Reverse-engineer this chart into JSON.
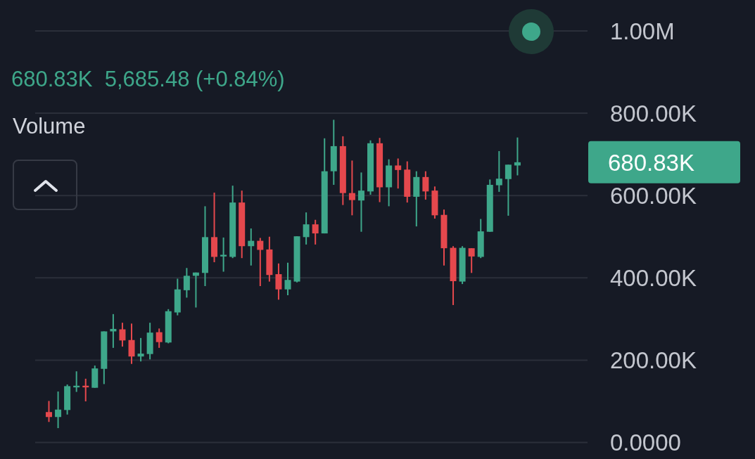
{
  "chart_data": {
    "type": "candlestick",
    "subtitle": "680.83K  5,685.48 (+0.84%)",
    "annotations": [
      "Volume",
      "680.83K"
    ],
    "categories": [
      null,
      null,
      null,
      null,
      null,
      null,
      null,
      null,
      null,
      null,
      null,
      null,
      null,
      null,
      null,
      null,
      null,
      null,
      null,
      null,
      null,
      null,
      null,
      null,
      null,
      null,
      null,
      null,
      null,
      null,
      null,
      null,
      null,
      null,
      null,
      null,
      null,
      null,
      null,
      null,
      null,
      null,
      null,
      null,
      null,
      null,
      null,
      null,
      null,
      null,
      null,
      null
    ],
    "ohlc": [
      [
        74000,
        101000,
        50000,
        62000
      ],
      [
        62000,
        124000,
        35000,
        80000
      ],
      [
        79000,
        141000,
        68000,
        137000
      ],
      [
        134000,
        173000,
        123000,
        138000
      ],
      [
        138000,
        155000,
        100000,
        134000
      ],
      [
        133000,
        187000,
        133000,
        180000
      ],
      [
        179000,
        270000,
        142000,
        270000
      ],
      [
        270000,
        312000,
        230000,
        276000
      ],
      [
        275000,
        291000,
        233000,
        248000
      ],
      [
        249000,
        289000,
        191000,
        209000
      ],
      [
        209000,
        254000,
        197000,
        216000
      ],
      [
        215000,
        291000,
        202000,
        267000
      ],
      [
        268000,
        277000,
        230000,
        244000
      ],
      [
        243000,
        324000,
        241000,
        319000
      ],
      [
        316000,
        398000,
        309000,
        372000
      ],
      [
        370000,
        424000,
        352000,
        405000
      ],
      [
        405000,
        413000,
        328000,
        413000
      ],
      [
        412000,
        574000,
        380000,
        499000
      ],
      [
        499000,
        607000,
        438000,
        451000
      ],
      [
        452000,
        498000,
        415000,
        456000
      ],
      [
        451000,
        624000,
        448000,
        583000
      ],
      [
        583000,
        612000,
        448000,
        477000
      ],
      [
        477000,
        520000,
        430000,
        490000
      ],
      [
        490000,
        497000,
        380000,
        468000
      ],
      [
        469000,
        500000,
        391000,
        407000
      ],
      [
        409000,
        435000,
        347000,
        372000
      ],
      [
        372000,
        437000,
        358000,
        395000
      ],
      [
        391000,
        501000,
        389000,
        501000
      ],
      [
        499000,
        559000,
        481000,
        530000
      ],
      [
        530000,
        541000,
        481000,
        508000
      ],
      [
        508000,
        739000,
        508000,
        659000
      ],
      [
        659000,
        784000,
        626000,
        720000
      ],
      [
        720000,
        744000,
        577000,
        606000
      ],
      [
        606000,
        685000,
        552000,
        589000
      ],
      [
        588000,
        656000,
        512000,
        612000
      ],
      [
        610000,
        734000,
        602000,
        727000
      ],
      [
        727000,
        740000,
        584000,
        620000
      ],
      [
        620000,
        688000,
        574000,
        673000
      ],
      [
        673000,
        690000,
        617000,
        662000
      ],
      [
        663000,
        683000,
        583000,
        597000
      ],
      [
        597000,
        659000,
        525000,
        645000
      ],
      [
        645000,
        659000,
        590000,
        610000
      ],
      [
        612000,
        622000,
        544000,
        552000
      ],
      [
        553000,
        566000,
        430000,
        472000
      ],
      [
        473000,
        477000,
        334000,
        392000
      ],
      [
        391000,
        477000,
        385000,
        473000
      ],
      [
        472000,
        472000,
        412000,
        452000
      ],
      [
        451000,
        543000,
        448000,
        513000
      ],
      [
        512000,
        639000,
        512000,
        626000
      ],
      [
        625000,
        708000,
        609000,
        641000
      ],
      [
        640000,
        675000,
        551000,
        675000
      ],
      [
        673000,
        741000,
        649000,
        680830
      ]
    ],
    "colors": [
      "#e5484d",
      "#3ea78a",
      "#3ea78a",
      "#3ea78a",
      "#e5484d",
      "#3ea78a",
      "#3ea78a",
      "#3ea78a",
      "#e5484d",
      "#e5484d",
      "#3ea78a",
      "#3ea78a",
      "#e5484d",
      "#3ea78a",
      "#3ea78a",
      "#3ea78a",
      "#3ea78a",
      "#3ea78a",
      "#e5484d",
      "#3ea78a",
      "#3ea78a",
      "#e5484d",
      "#3ea78a",
      "#e5484d",
      "#e5484d",
      "#e5484d",
      "#3ea78a",
      "#3ea78a",
      "#3ea78a",
      "#e5484d",
      "#3ea78a",
      "#3ea78a",
      "#e5484d",
      "#e5484d",
      "#3ea78a",
      "#3ea78a",
      "#e5484d",
      "#3ea78a",
      "#e5484d",
      "#e5484d",
      "#3ea78a",
      "#e5484d",
      "#e5484d",
      "#e5484d",
      "#e5484d",
      "#3ea78a",
      "#e5484d",
      "#3ea78a",
      "#3ea78a",
      "#3ea78a",
      "#3ea78a",
      "#3ea78a"
    ],
    "ylim": [
      -40000,
      1075000
    ],
    "yticks": [
      {
        "value": 0,
        "label": "0.0000"
      },
      {
        "value": 200000,
        "label": "200.00K"
      },
      {
        "value": 400000,
        "label": "400.00K"
      },
      {
        "value": 600000,
        "label": "600.00K"
      },
      {
        "value": 800000,
        "label": "800.00K"
      },
      {
        "value": 1000000,
        "label": "1.00M"
      }
    ],
    "grid": "y"
  }
}
